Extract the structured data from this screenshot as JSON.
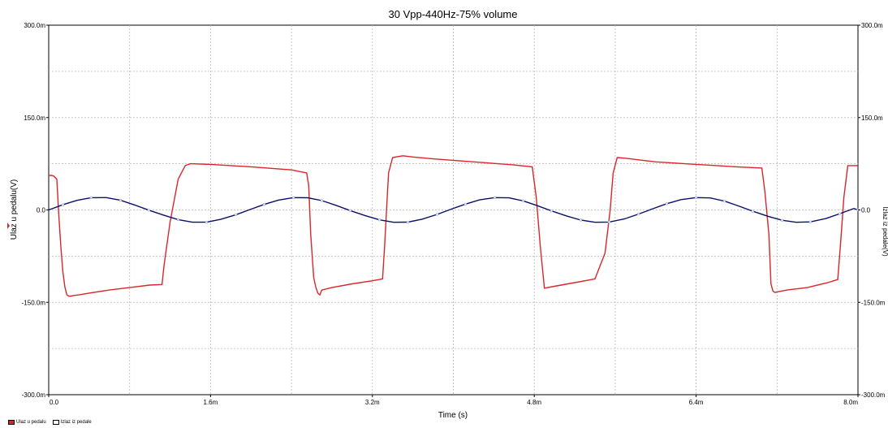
{
  "chart_data": {
    "type": "line",
    "title": "30 Vpp-440Hz-75% volume",
    "xlabel": "Time (s)",
    "ylabel_left": "Ulaz u pedalu(V)",
    "ylabel_right": "Izlaz iz pedale(V)",
    "xlim": [
      0.0,
      8.0
    ],
    "ylim": [
      -300,
      300
    ],
    "x_ticks": [
      "0.0",
      "1.6m",
      "3.2m",
      "4.8m",
      "6.4m",
      "8.0m"
    ],
    "y_ticks_left": [
      "300.0m",
      "150.0m",
      "0.0",
      "-150.0m",
      "-300.0m"
    ],
    "y_ticks_right": [
      "300.0m",
      "150.0m",
      "0.0",
      "-150.0m",
      "-300.0m"
    ],
    "grid": true,
    "legend_position": "bottom-left",
    "series": [
      {
        "name": "Ulaz u pedalu",
        "color": "#0b0f6b",
        "x": [
          0.0,
          0.14,
          0.28,
          0.42,
          0.57,
          0.71,
          0.85,
          0.99,
          1.14,
          1.28,
          1.42,
          1.56,
          1.7,
          1.85,
          1.99,
          2.13,
          2.27,
          2.42,
          2.56,
          2.7,
          2.84,
          2.98,
          3.13,
          3.27,
          3.41,
          3.55,
          3.69,
          3.84,
          3.98,
          4.12,
          4.26,
          4.41,
          4.55,
          4.69,
          4.83,
          4.97,
          5.12,
          5.26,
          5.4,
          5.54,
          5.69,
          5.83,
          5.97,
          6.11,
          6.25,
          6.4,
          6.54,
          6.68,
          6.82,
          6.96,
          7.11,
          7.25,
          7.39,
          7.53,
          7.68,
          7.82,
          7.96,
          8.0
        ],
        "y": [
          0,
          8.4,
          15.5,
          19.9,
          20.0,
          15.7,
          8.1,
          -0.4,
          -8.7,
          -15.7,
          -19.9,
          -19.9,
          -15.3,
          -7.8,
          0.7,
          9.0,
          15.9,
          20.0,
          19.8,
          15.2,
          7.5,
          -1.0,
          -9.3,
          -16.1,
          -20.0,
          -19.8,
          -15.0,
          -7.2,
          1.3,
          9.5,
          16.3,
          20.0,
          19.7,
          14.8,
          7.0,
          -1.6,
          -9.8,
          -16.5,
          -20.0,
          -19.6,
          -14.6,
          -6.7,
          1.9,
          10.1,
          16.7,
          20.0,
          19.5,
          14.4,
          6.4,
          -2.1,
          -10.3,
          -16.8,
          -20.0,
          -19.4,
          -14.1,
          -6.1,
          2.4,
          0
        ]
      },
      {
        "name": "Izlaz iz pedale",
        "color": "#d8262a",
        "x": [
          0.0,
          0.03,
          0.05,
          0.08,
          0.1,
          0.12,
          0.14,
          0.16,
          0.18,
          0.2,
          0.22,
          0.24,
          0.3,
          0.4,
          0.6,
          0.8,
          1.0,
          1.12,
          1.14,
          1.2,
          1.28,
          1.35,
          1.4,
          1.6,
          2.0,
          2.4,
          2.55,
          2.57,
          2.59,
          2.62,
          2.64,
          2.66,
          2.68,
          2.7,
          2.8,
          3.0,
          3.2,
          3.3,
          3.32,
          3.34,
          3.36,
          3.4,
          3.5,
          3.6,
          3.8,
          4.2,
          4.6,
          4.78,
          4.82,
          4.86,
          4.9,
          5.0,
          5.2,
          5.4,
          5.5,
          5.55,
          5.58,
          5.62,
          5.7,
          5.8,
          6.0,
          6.4,
          6.8,
          7.05,
          7.08,
          7.12,
          7.14,
          7.16,
          7.18,
          7.2,
          7.3,
          7.5,
          7.7,
          7.8,
          7.83,
          7.86,
          7.9,
          8.0
        ],
        "y": [
          56,
          56,
          55,
          50,
          -10,
          -60,
          -100,
          -125,
          -138,
          -140,
          -140,
          -139,
          -138,
          -135,
          -130,
          -126,
          -122,
          -121,
          -90,
          -20,
          50,
          72,
          75,
          74,
          70,
          65,
          60,
          40,
          -40,
          -110,
          -125,
          -135,
          -138,
          -130,
          -126,
          -120,
          -115,
          -112,
          -60,
          0,
          60,
          85,
          88,
          86,
          83,
          78,
          73,
          70,
          20,
          -60,
          -127,
          -124,
          -118,
          -112,
          -70,
          0,
          60,
          85,
          84,
          82,
          78,
          74,
          70,
          68,
          30,
          -40,
          -120,
          -132,
          -134,
          -133,
          -130,
          -126,
          -118,
          -113,
          -50,
          20,
          72,
          72
        ]
      }
    ]
  }
}
